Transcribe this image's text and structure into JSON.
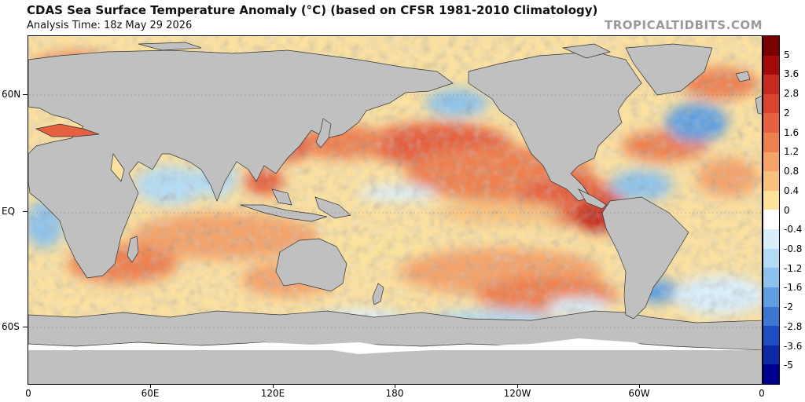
{
  "header": {
    "title": "CDAS Sea Surface Temperature Anomaly (°C) (based on CFSR 1981-2010 Climatology)",
    "subtitle": "Analysis Time: 18z May 29 2026",
    "credit": "TROPICALTIDBITS.COM"
  },
  "map": {
    "projection": "equirectangular",
    "land_color": "#c0c0c0",
    "ice_color": "#ffffff",
    "lat_labels": [
      "60N",
      "EQ",
      "60S"
    ],
    "lon_labels": [
      "0",
      "60E",
      "120E",
      "180",
      "120W",
      "60W",
      "0"
    ]
  },
  "colorbar": {
    "levels": [
      "5",
      "3.6",
      "2.8",
      "2",
      "1.6",
      "1.2",
      "0.8",
      "0.4",
      "0",
      "-0.4",
      "-0.8",
      "-1.2",
      "-1.6",
      "-2",
      "-2.8",
      "-3.6",
      "-5"
    ],
    "colors": [
      "#7a0000",
      "#a30b0b",
      "#c52a1e",
      "#d9432f",
      "#e5613f",
      "#ee8050",
      "#f4a36a",
      "#f8c27e",
      "#fbe39c",
      "#ffffff",
      "#d9eefb",
      "#b3dcf4",
      "#8cc2ec",
      "#5f9fe0",
      "#3c78d2",
      "#1e4fc2",
      "#0c2aa8",
      "#00008e"
    ]
  },
  "chart_data": {
    "type": "heatmap",
    "title": "CDAS Sea Surface Temperature Anomaly (°C) (based on CFSR 1981-2010 Climatology)",
    "subtitle": "Analysis Time: 18z May 29 2026",
    "x_ticks": [
      "0",
      "60E",
      "120E",
      "180",
      "120W",
      "60W",
      "0"
    ],
    "y_ticks": [
      "60N",
      "EQ",
      "60S"
    ],
    "colorbar_levels": [
      5,
      3.6,
      2.8,
      2,
      1.6,
      1.2,
      0.8,
      0.4,
      0,
      -0.4,
      -0.8,
      -1.2,
      -1.6,
      -2,
      -2.8,
      -3.6,
      -5
    ],
    "colorbar_unit": "°C"
  }
}
